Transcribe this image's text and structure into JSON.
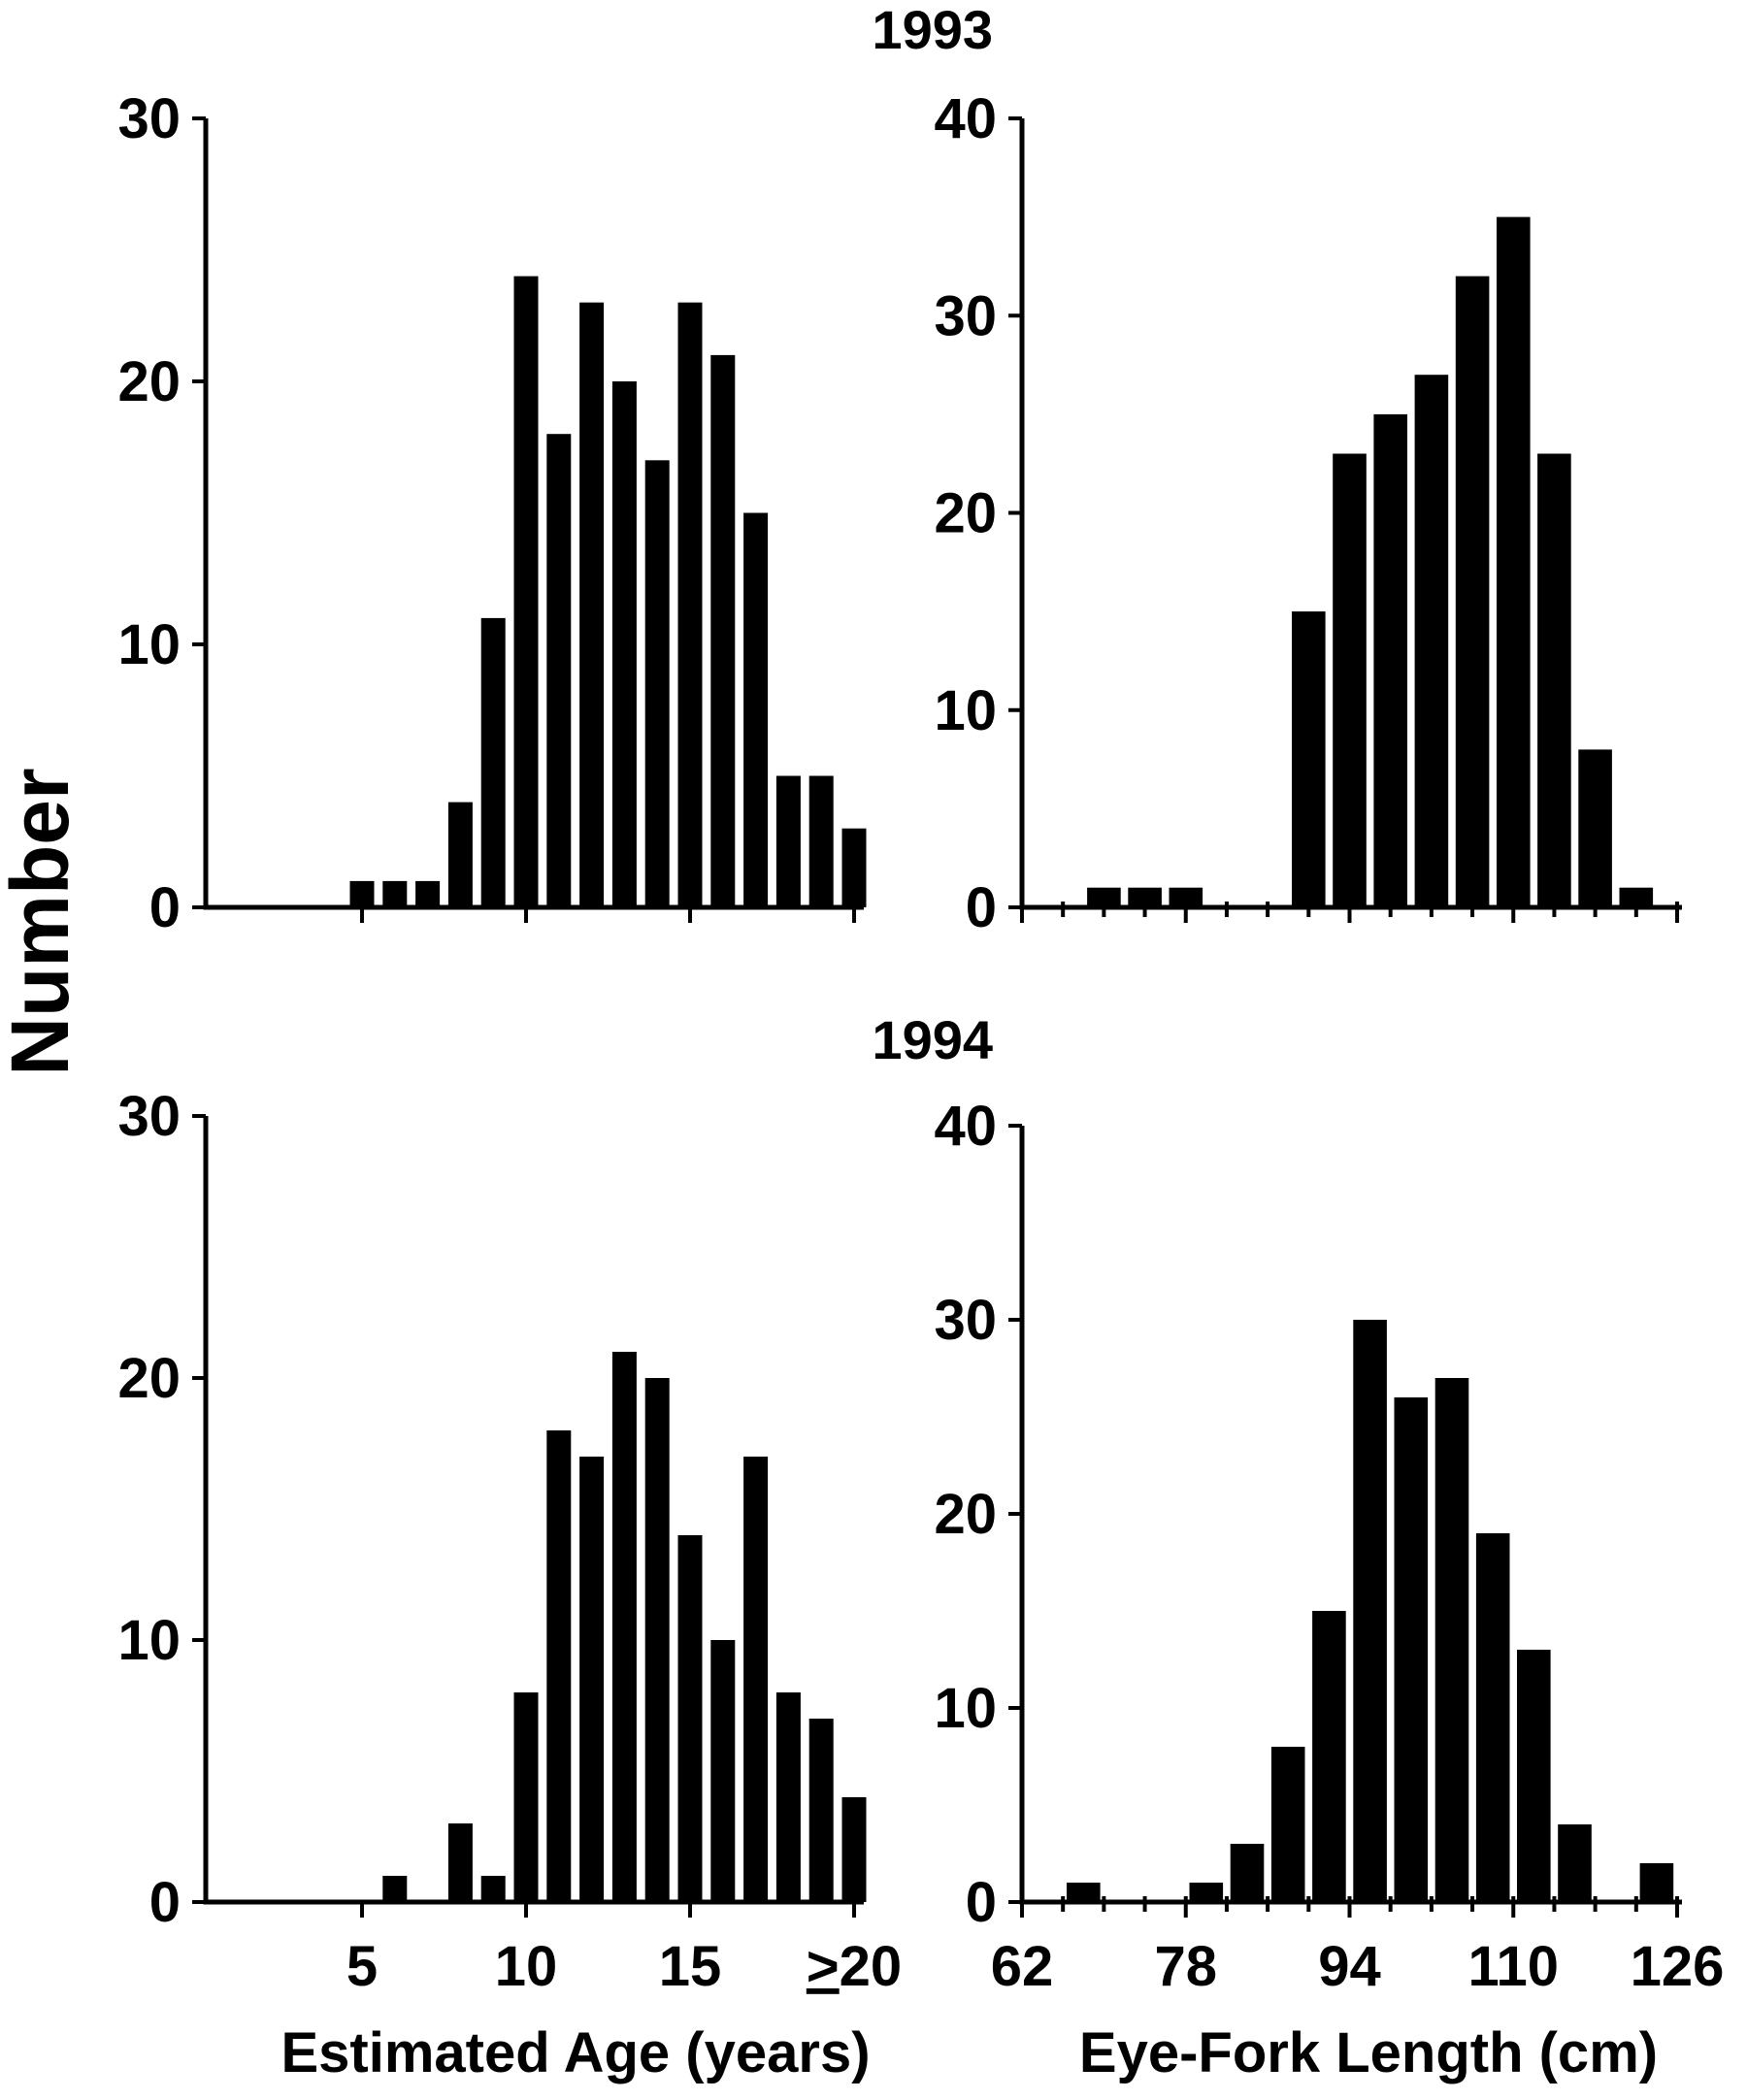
{
  "figure": {
    "ylabel": "Number",
    "year_labels": [
      "1993",
      "1994"
    ],
    "xlabel_age": "Estimated Age (years)",
    "xlabel_length": "Eye-Fork Length (cm)"
  },
  "chart_data": [
    {
      "id": "age-1993",
      "type": "bar",
      "title": "1993",
      "xlabel": "",
      "ylabel": "Number",
      "categories": [
        "1",
        "2",
        "3",
        "4",
        "5",
        "6",
        "7",
        "8",
        "9",
        "10",
        "11",
        "12",
        "13",
        "14",
        "15",
        "16",
        "17",
        "18",
        "19",
        "20"
      ],
      "values": [
        0,
        0,
        0,
        0,
        1,
        1,
        1,
        4,
        11,
        24,
        18,
        23,
        20,
        17,
        23,
        21,
        15,
        5,
        5,
        3
      ],
      "ylim": [
        0,
        30
      ],
      "yticks": [
        0,
        10,
        20,
        30
      ],
      "xticks": [
        5,
        10,
        15,
        20
      ],
      "xtick_labels": [
        "",
        "",
        "",
        ""
      ],
      "grid": false
    },
    {
      "id": "length-1993",
      "type": "bar",
      "title": "1993",
      "xlabel": "",
      "ylabel": "",
      "categories": [
        "64",
        "66",
        "68",
        "70",
        "72",
        "74",
        "76",
        "78",
        "80",
        "82",
        "84",
        "86",
        "88",
        "90",
        "92",
        "94",
        "96",
        "98",
        "100",
        "102",
        "104",
        "106",
        "108",
        "110",
        "112",
        "114",
        "116",
        "118",
        "120",
        "122"
      ],
      "x": [
        64,
        66,
        68,
        70,
        72,
        74,
        76,
        78,
        80,
        82,
        84,
        86,
        88,
        90,
        92,
        94,
        96,
        98,
        100,
        102,
        104,
        106,
        108,
        110,
        112,
        114,
        116,
        118,
        120,
        122
      ],
      "values": [
        0,
        0,
        0,
        1,
        0,
        1,
        0,
        1,
        0,
        0,
        0,
        0,
        0,
        15,
        0,
        23,
        0,
        25,
        0,
        27,
        0,
        32,
        0,
        35,
        0,
        23,
        0,
        8,
        0,
        1
      ],
      "bin_width": 4,
      "ylim": [
        0,
        40
      ],
      "yticks": [
        0,
        10,
        20,
        30,
        40
      ],
      "xlim": [
        62,
        126
      ],
      "xticks": [
        62,
        78,
        94,
        110,
        126
      ],
      "xtick_labels": [
        "",
        "",
        "",
        "",
        ""
      ],
      "grid": false
    },
    {
      "id": "age-1994",
      "type": "bar",
      "title": "1994",
      "xlabel": "Estimated Age (years)",
      "ylabel": "Number",
      "categories": [
        "1",
        "2",
        "3",
        "4",
        "5",
        "6",
        "7",
        "8",
        "9",
        "10",
        "11",
        "12",
        "13",
        "14",
        "15",
        "16",
        "17",
        "18",
        "19",
        "20"
      ],
      "values": [
        0,
        0,
        0,
        0,
        0,
        1,
        0,
        3,
        1,
        8,
        18,
        17,
        21,
        20,
        14,
        10,
        17,
        8,
        7,
        4
      ],
      "ylim": [
        0,
        30
      ],
      "yticks": [
        0,
        10,
        20,
        30
      ],
      "xticks": [
        5,
        10,
        15,
        20
      ],
      "xtick_labels": [
        "5",
        "10",
        "15",
        "≥20"
      ],
      "grid": false
    },
    {
      "id": "length-1994",
      "type": "bar",
      "title": "1994",
      "xlabel": "Eye-Fork Length (cm)",
      "ylabel": "",
      "x": [
        68,
        72,
        76,
        80,
        84,
        88,
        92,
        96,
        100,
        104,
        108,
        112,
        116,
        120,
        124
      ],
      "values": [
        1,
        0,
        0,
        1,
        3,
        8,
        15,
        30,
        26,
        27,
        19,
        13,
        4,
        0,
        2
      ],
      "bin_width": 4,
      "ylim": [
        0,
        40
      ],
      "yticks": [
        0,
        10,
        20,
        30,
        40
      ],
      "xlim": [
        62,
        126
      ],
      "xticks": [
        62,
        78,
        94,
        110,
        126
      ],
      "xtick_labels": [
        "62",
        "78",
        "94",
        "110",
        "126"
      ],
      "grid": false
    }
  ]
}
